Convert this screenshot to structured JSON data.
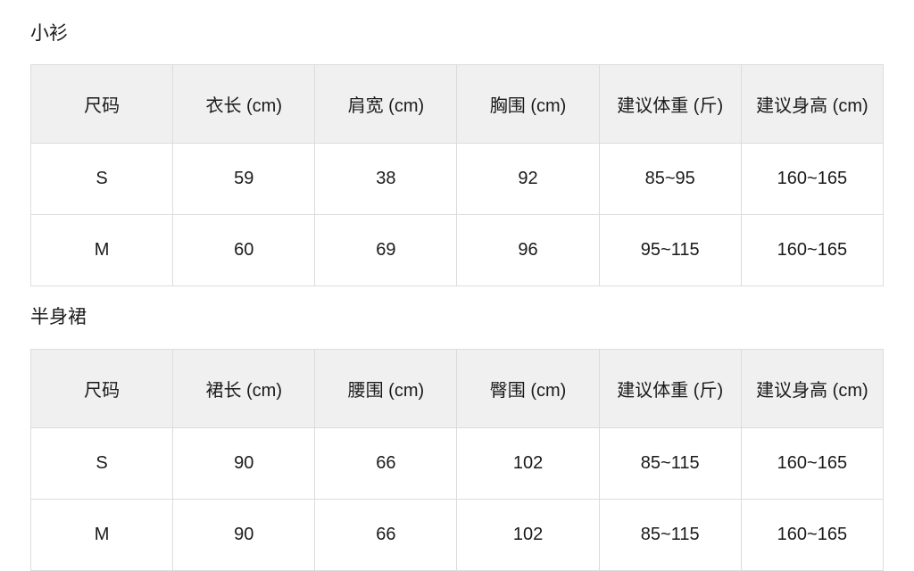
{
  "sections": [
    {
      "title": "小衫",
      "headers": [
        "尺码",
        "衣长 (cm)",
        "肩宽 (cm)",
        "胸围 (cm)",
        "建议体重 (斤)",
        "建议身高 (cm)"
      ],
      "rows": [
        [
          "S",
          "59",
          "38",
          "92",
          "85~95",
          "160~165"
        ],
        [
          "M",
          "60",
          "69",
          "96",
          "95~115",
          "160~165"
        ]
      ]
    },
    {
      "title": "半身裙",
      "headers": [
        "尺码",
        "裙长 (cm)",
        "腰围 (cm)",
        "臀围 (cm)",
        "建议体重 (斤)",
        "建议身高 (cm)"
      ],
      "rows": [
        [
          "S",
          "90",
          "66",
          "102",
          "85~115",
          "160~165"
        ],
        [
          "M",
          "90",
          "66",
          "102",
          "85~115",
          "160~165"
        ]
      ]
    }
  ]
}
